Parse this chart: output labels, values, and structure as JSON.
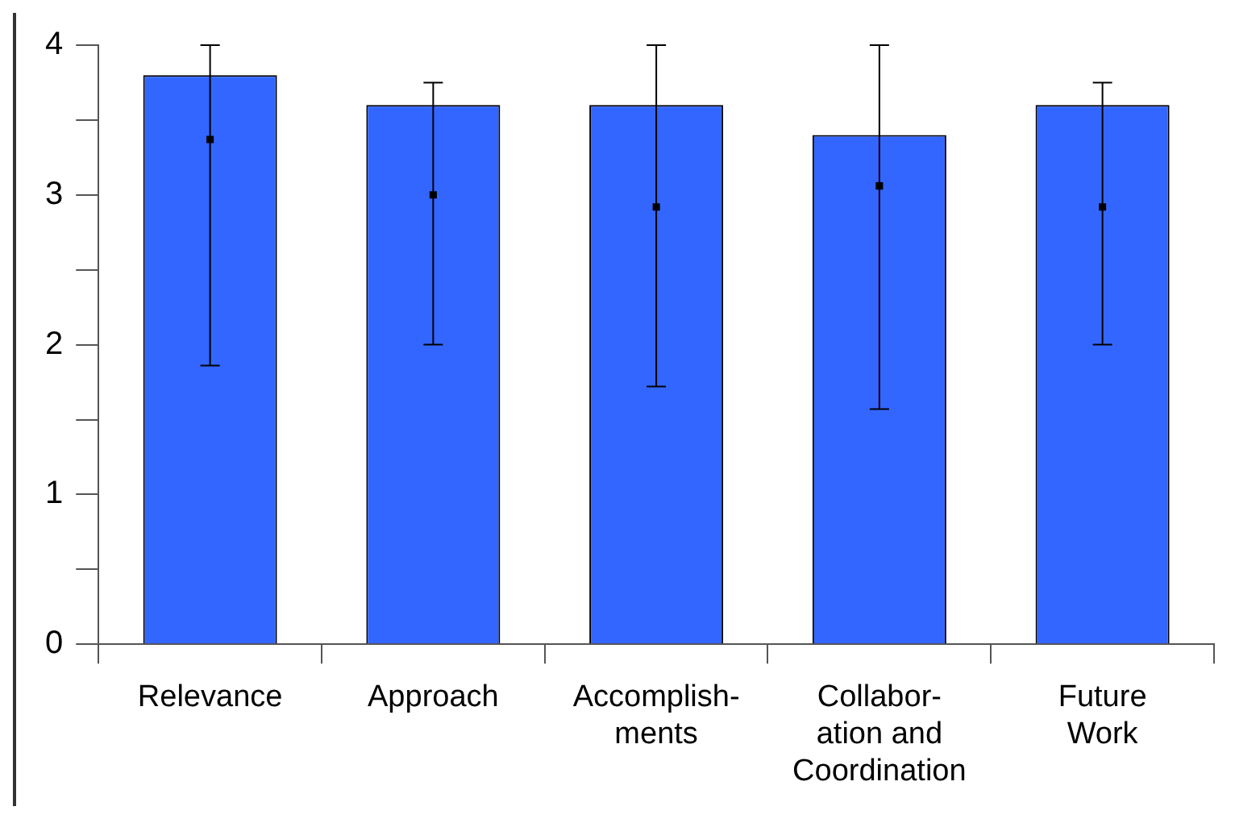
{
  "chart_data": {
    "type": "bar",
    "categories": [
      "Relevance",
      "Approach",
      "Accomplish-\nments",
      "Collabor-\nation and\nCoordination",
      "Future\nWork"
    ],
    "series": [
      {
        "color": "#3366ff",
        "values": [
          3.8,
          3.6,
          3.6,
          3.4,
          3.6
        ]
      },
      {
        "type": "scatter",
        "color": "#000000",
        "marker": "square",
        "x": [
          "Relevance",
          "Approach",
          "Accomplish-\nments",
          "Collabor-\nation and\nCoordination",
          "Future\nWork"
        ],
        "values": [
          3.37,
          3.0,
          2.92,
          3.06,
          2.92
        ],
        "errors": [
          [
            1.86,
            4.0
          ],
          [
            2.0,
            3.75
          ],
          [
            1.72,
            4.0
          ],
          [
            1.57,
            4.0
          ],
          [
            2.0,
            3.75
          ]
        ]
      }
    ],
    "ylim": [
      0,
      4
    ],
    "yticks": [
      0,
      {
        "value": 0.5,
        "label": null
      },
      1,
      {
        "value": 1.5,
        "label": null
      },
      2,
      {
        "value": 2.5,
        "label": null
      },
      3,
      {
        "value": 3.5,
        "label": null
      },
      4
    ],
    "grid": false,
    "legend": false
  }
}
